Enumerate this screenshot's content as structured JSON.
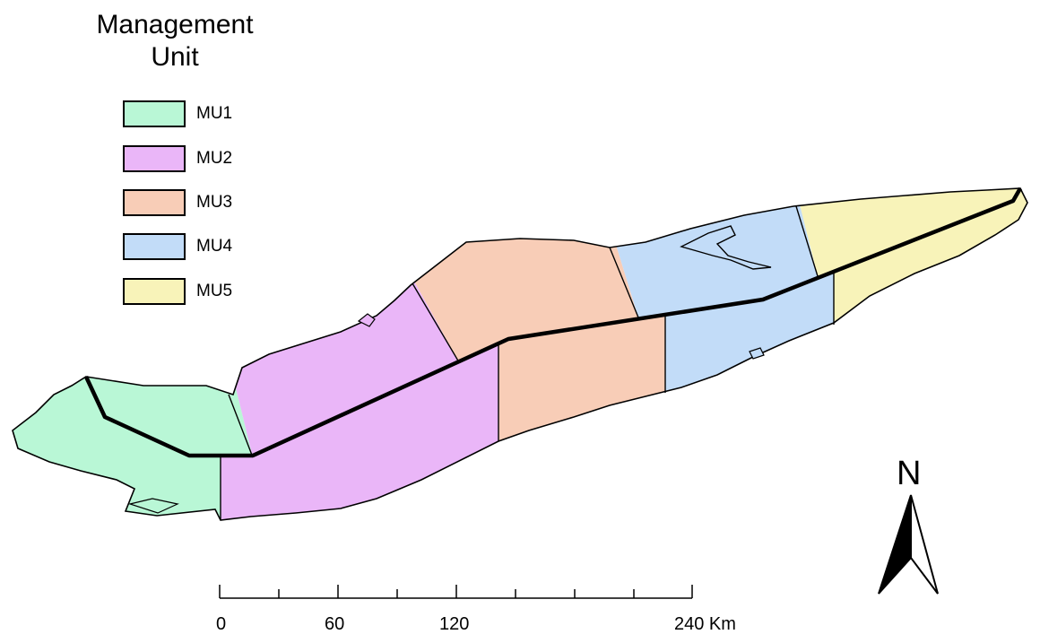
{
  "legend": {
    "title_line1": "Management",
    "title_line2": "Unit",
    "items": [
      {
        "label": "MU1",
        "color": "#b9f7d6"
      },
      {
        "label": "MU2",
        "color": "#eab6f8"
      },
      {
        "label": "MU3",
        "color": "#f8cdb7"
      },
      {
        "label": "MU4",
        "color": "#c2dcf8"
      },
      {
        "label": "MU5",
        "color": "#f8f3b9"
      }
    ]
  },
  "scale_bar": {
    "labels": [
      "0",
      "60",
      "120",
      "240 Km"
    ]
  },
  "north_arrow": {
    "letter": "N"
  },
  "colors": {
    "outline": "#000000",
    "border_line": "#000000"
  }
}
